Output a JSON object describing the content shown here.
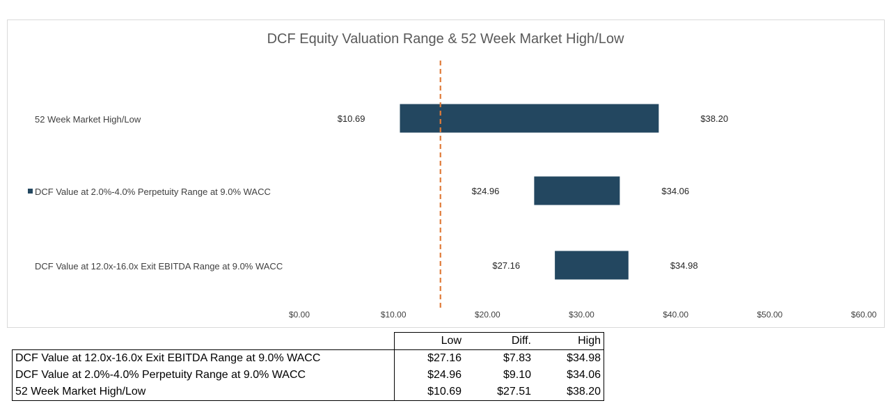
{
  "chart_data": {
    "type": "bar",
    "orientation": "horizontal-floating",
    "title": "DCF Equity Valuation Range & 52 Week Market High/Low",
    "categories": [
      "52 Week Market High/Low",
      "DCF Value at 2.0%-4.0% Perpetuity Range at 9.0% WACC",
      "DCF Value at 12.0x-16.0x Exit EBITDA Range at 9.0% WACC"
    ],
    "low": [
      10.69,
      24.96,
      27.16
    ],
    "high": [
      38.2,
      34.06,
      34.98
    ],
    "low_labels": [
      "$10.69",
      "$24.96",
      "$27.16"
    ],
    "high_labels": [
      "$38.20",
      "$34.06",
      "$34.98"
    ],
    "reference_line": 15,
    "xlim": [
      0,
      60
    ],
    "x_ticks": [
      "$0.00",
      "$10.00",
      "$20.00",
      "$30.00",
      "$40.00",
      "$50.00",
      "$60.00"
    ],
    "grid": false,
    "bar_color": "#234760",
    "reference_color": "#e07b39"
  },
  "table": {
    "headers": [
      "",
      "Low",
      "Diff.",
      "High"
    ],
    "rows": [
      [
        "DCF Value at 12.0x-16.0x Exit EBITDA Range at 9.0% WACC",
        "$27.16",
        "$7.83",
        "$34.98"
      ],
      [
        "DCF Value at 2.0%-4.0% Perpetuity Range at 9.0% WACC",
        "$24.96",
        "$9.10",
        "$34.06"
      ],
      [
        "52 Week Market High/Low",
        "$10.69",
        "$27.51",
        "$38.20"
      ]
    ]
  }
}
